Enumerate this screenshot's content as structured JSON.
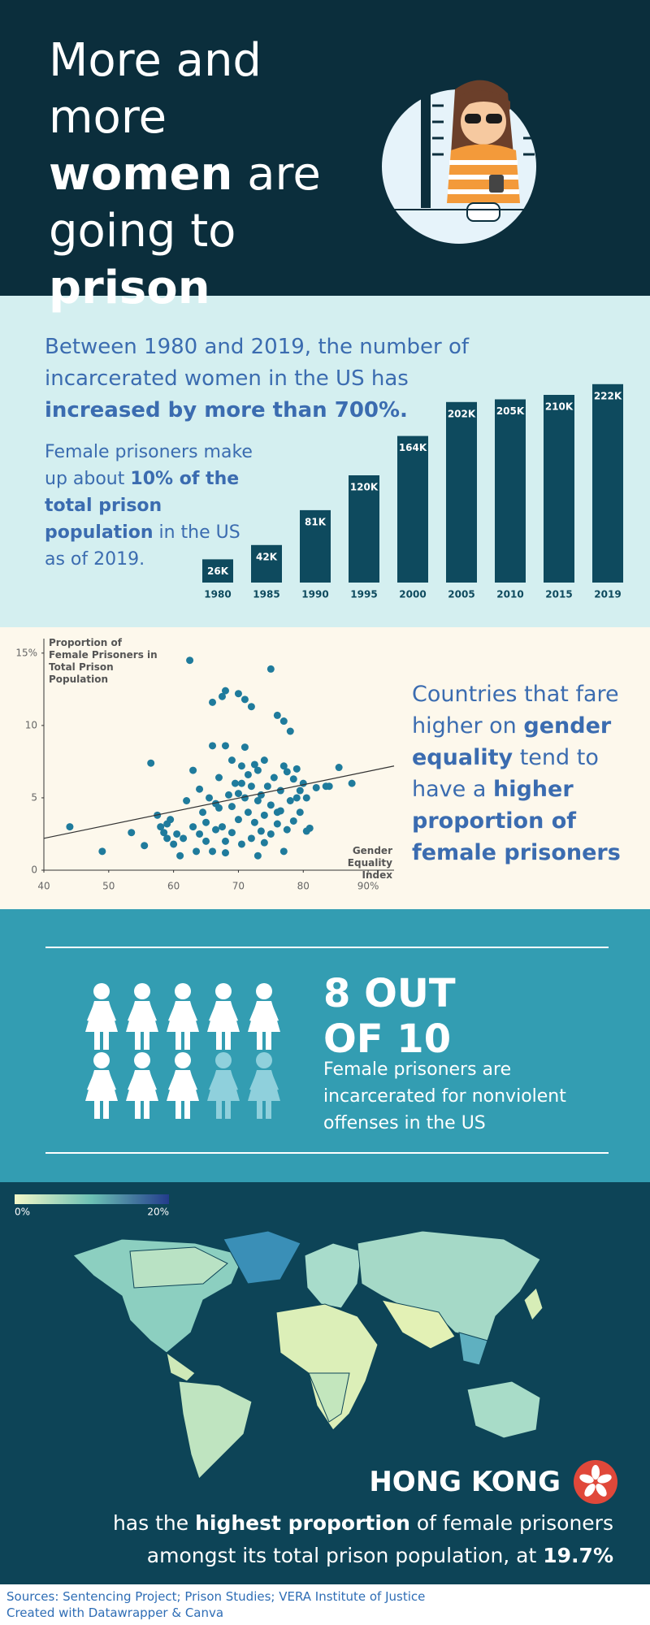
{
  "header": {
    "title": [
      "More and more",
      "women",
      "are going to",
      "prison"
    ]
  },
  "growth": {
    "text": [
      "Between 1980 and 2019, the number of incarcerated women in the US has",
      "increased by more than 700%."
    ],
    "note": [
      "Female prisoners make up about",
      "10% of the total prison population",
      "in the US as of 2019."
    ]
  },
  "chart_data": [
    {
      "type": "bar",
      "categories": [
        "1980",
        "1985",
        "1990",
        "1995",
        "2000",
        "2005",
        "2010",
        "2015",
        "2019"
      ],
      "values": [
        26000,
        42000,
        81000,
        120000,
        164000,
        202000,
        205000,
        210000,
        222000
      ],
      "value_labels": [
        "26K",
        "42K",
        "81K",
        "120K",
        "164K",
        "202K",
        "205K",
        "210K",
        "222K"
      ],
      "color": "#0e4a5e"
    },
    {
      "type": "scatter",
      "y_label": "Proportion of Female Prisoners in Total Prison Population",
      "x_label": "Gender Equality Index",
      "color": "#1f7b9c",
      "xlim": [
        40,
        94
      ],
      "ylim": [
        0,
        16
      ],
      "xticks": [
        40,
        50,
        60,
        70,
        80,
        {
          "value": 90,
          "label": "90%"
        }
      ],
      "yticks": [
        0,
        5,
        10,
        {
          "value": 15,
          "label": "15%"
        }
      ],
      "x": [
        44,
        49,
        53.5,
        55.5,
        56.5,
        57.5,
        58,
        58.5,
        59,
        59.5,
        60,
        60.5,
        61,
        61.5,
        62,
        62.5,
        63,
        63,
        63.5,
        64,
        64.5,
        65,
        65,
        65.5,
        66,
        66,
        66,
        66.5,
        67,
        67,
        67.5,
        67.5,
        68,
        68,
        68,
        68.5,
        69,
        69,
        69,
        69.5,
        70,
        70,
        70,
        70.5,
        70.5,
        71,
        71,
        71,
        71.5,
        71.5,
        72,
        72,
        72,
        72.5,
        72.5,
        73,
        73,
        73,
        73.5,
        73.5,
        74,
        74,
        74.5,
        75,
        75,
        75,
        75.5,
        76,
        76,
        76.5,
        76.5,
        77,
        77,
        77,
        77.5,
        77.5,
        78,
        78,
        78.5,
        78.5,
        79,
        79.5,
        79.5,
        80,
        80.5,
        80.5,
        81,
        82,
        83.5,
        84,
        85.5,
        87.5,
        59,
        64,
        66.5,
        68,
        70.5,
        74,
        76,
        79
      ],
      "y": [
        3.0,
        1.3,
        2.6,
        1.7,
        7.4,
        3.8,
        3.0,
        2.6,
        2.2,
        3.5,
        1.8,
        2.5,
        1.0,
        2.2,
        4.8,
        14.5,
        6.9,
        3.0,
        1.3,
        2.5,
        4.0,
        2.0,
        3.3,
        5.0,
        1.3,
        8.6,
        11.6,
        2.8,
        4.3,
        6.4,
        12.0,
        3.0,
        12.4,
        8.6,
        1.2,
        5.2,
        7.6,
        4.4,
        2.6,
        6.0,
        5.3,
        3.5,
        12.2,
        7.2,
        1.8,
        5.0,
        8.5,
        11.8,
        4.0,
        6.6,
        2.2,
        5.8,
        11.3,
        3.3,
        7.3,
        1.0,
        4.8,
        6.9,
        2.7,
        5.2,
        3.8,
        7.6,
        5.8,
        2.5,
        4.5,
        13.9,
        6.4,
        3.2,
        10.7,
        5.5,
        4.1,
        7.2,
        10.3,
        1.3,
        2.8,
        6.8,
        4.8,
        9.6,
        3.4,
        6.3,
        7.0,
        4.0,
        5.5,
        6.0,
        5.0,
        2.7,
        2.9,
        5.7,
        5.8,
        5.8,
        7.1,
        6.0,
        3.2,
        5.6,
        4.6,
        2.0,
        6.0,
        1.9,
        4.0,
        5.0
      ],
      "trendline": {
        "x": [
          40,
          94
        ],
        "y": [
          2.2,
          7.2
        ],
        "color": "#333333"
      }
    }
  ],
  "scatter_note": [
    "Countries that fare higher on",
    "gender equality",
    "tend to have a",
    "higher proportion of female prisoners"
  ],
  "nonviolent": {
    "headline": "8 OUT OF 10",
    "text": "Female prisoners are incarcerated for nonviolent offenses in the US"
  },
  "map": {
    "legend": [
      {
        "value": 0,
        "label": "0%"
      },
      {
        "value": 20,
        "label": "20%"
      }
    ],
    "highlight": "HONG KONG",
    "text": [
      "has the",
      "highest proportion",
      "of female prisoners amongst its total prison population, at",
      "19.7%"
    ]
  },
  "footer": {
    "sources": "Sources: Sentencing Project; Prison Studies; VERA Institute of Justice",
    "credit": "Created with Datawrapper & Canva"
  }
}
